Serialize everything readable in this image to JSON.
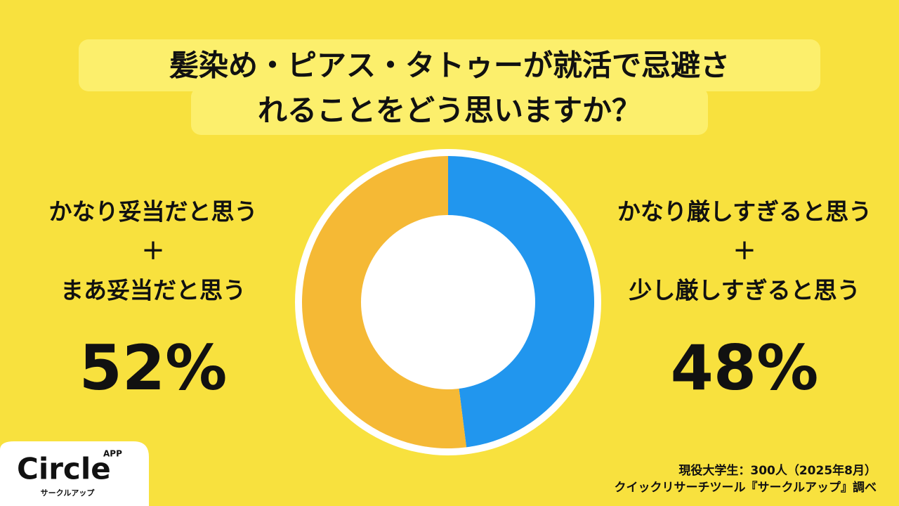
{
  "chart_data": {
    "type": "pie",
    "title": [
      "髪染め・ピアス・タトゥーが就活で忌避さ",
      "れることをどう思いますか？"
    ],
    "categories": [
      [
        "かなり厳しすぎると思う",
        "＋",
        "少し厳しすぎると思う"
      ],
      [
        "かなり妥当だと思う",
        "＋",
        "まあ妥当だと思う"
      ]
    ],
    "values": [
      48,
      52
    ],
    "value_labels": [
      "48%",
      "52%"
    ],
    "colors": [
      "#2196ee",
      "#f5b935"
    ],
    "source": [
      "現役大学生：300人（2025年8月）",
      "クイックリサーチツール『サークルアップ』調べ"
    ]
  },
  "logo": {
    "name": "Circle",
    "badge": "APP",
    "kana": "サークルアップ"
  }
}
